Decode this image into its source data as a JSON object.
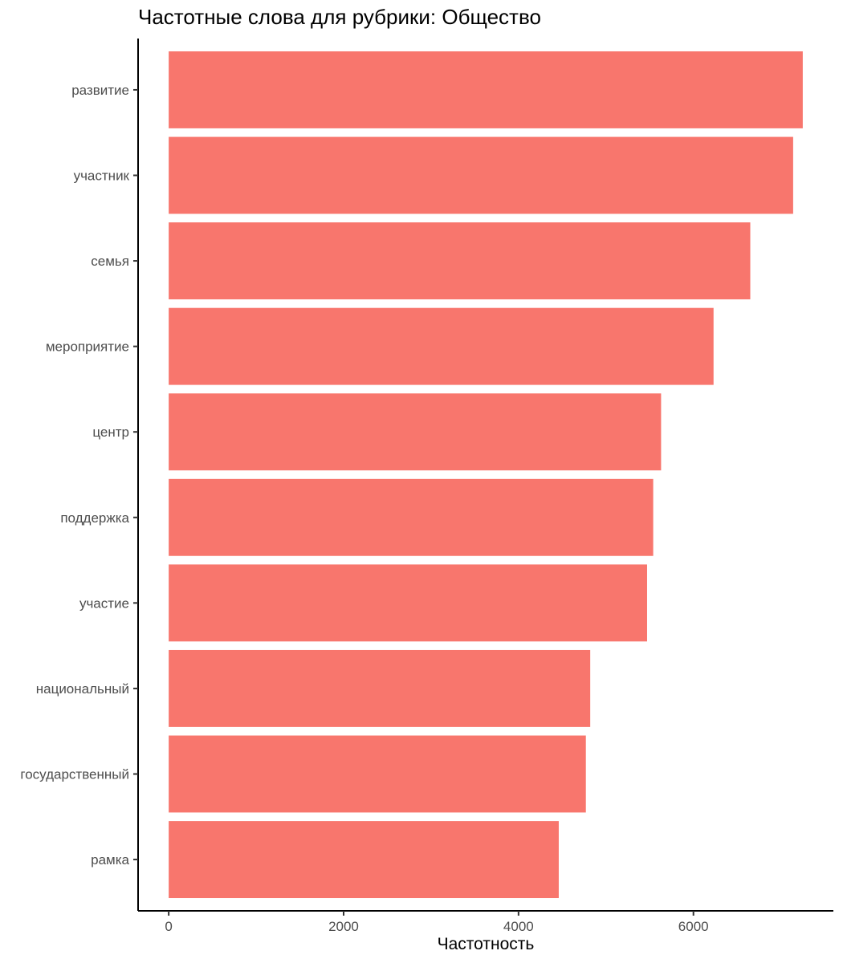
{
  "chart_data": {
    "type": "bar",
    "orientation": "horizontal",
    "title": "Частотные слова для рубрики: Общество",
    "xlabel": "Частотность",
    "ylabel": "",
    "categories": [
      "развитие",
      "участник",
      "семья",
      "мероприятие",
      "центр",
      "поддержка",
      "участие",
      "национальный",
      "государственный",
      "рамка"
    ],
    "values": [
      7250,
      7140,
      6650,
      6230,
      5630,
      5540,
      5470,
      4820,
      4770,
      4460
    ],
    "xlim": [
      -350,
      7600
    ],
    "xticks": [
      0,
      2000,
      4000,
      6000
    ],
    "xtick_labels": [
      "0",
      "2000",
      "4000",
      "6000"
    ],
    "bar_color": "#F8766D",
    "grid": false,
    "legend": "none"
  }
}
